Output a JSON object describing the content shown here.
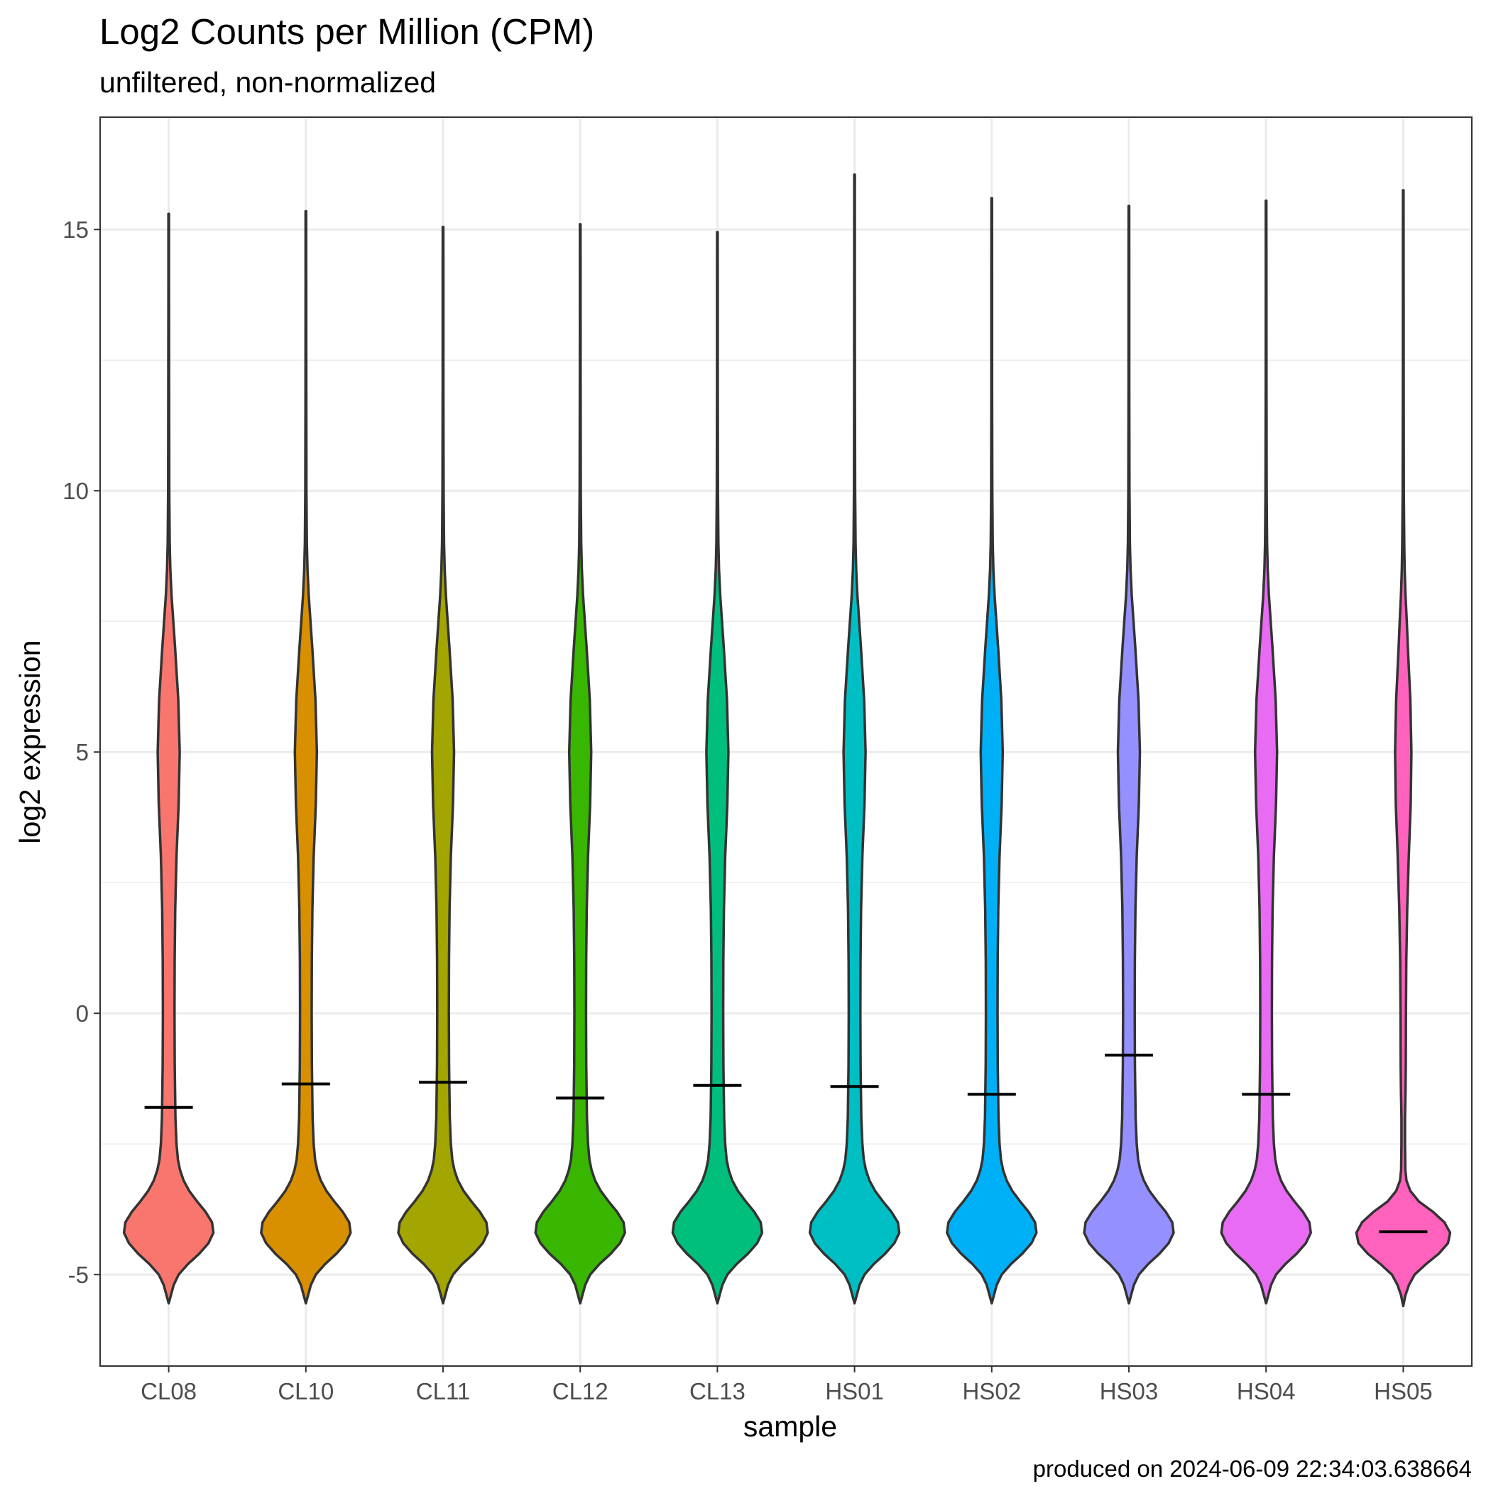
{
  "chart_data": {
    "type": "violin",
    "title": "Log2 Counts per Million (CPM)",
    "subtitle": "unfiltered, non-normalized",
    "xlabel": "sample",
    "ylabel": "log2 expression",
    "caption": "produced on 2024-06-09 22:34:03.638664",
    "ylim": [
      -6.75,
      17.15
    ],
    "yticks": [
      -5,
      0,
      5,
      10,
      15
    ],
    "grid": true,
    "legend": "none",
    "categories": [
      "CL08",
      "CL10",
      "CL11",
      "CL12",
      "CL13",
      "HS01",
      "HS02",
      "HS03",
      "HS04",
      "HS05"
    ],
    "colors": [
      "#F8766D",
      "#D89000",
      "#A3A500",
      "#39B600",
      "#00BF7D",
      "#00BFC4",
      "#00B0F6",
      "#9590FF",
      "#E76BF3",
      "#FF62BC"
    ],
    "min": [
      -5.55,
      -5.55,
      -5.55,
      -5.55,
      -5.55,
      -5.55,
      -5.55,
      -5.55,
      -5.55,
      -5.6
    ],
    "max": [
      15.3,
      15.35,
      15.05,
      15.1,
      14.95,
      16.05,
      15.6,
      15.45,
      15.55,
      15.75
    ],
    "median": [
      -1.8,
      -1.35,
      -1.32,
      -1.62,
      -1.38,
      -1.4,
      -1.55,
      -0.8,
      -1.55,
      -4.18
    ]
  }
}
